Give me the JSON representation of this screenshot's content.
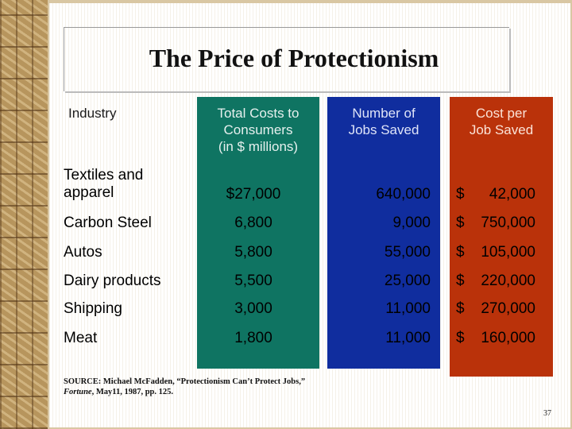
{
  "slide": {
    "title": "The Price of Protectionism",
    "page_number": "37"
  },
  "columns": {
    "industry": "Industry",
    "total_costs": [
      "Total Costs to",
      "Consumers",
      "(in $ millions)"
    ],
    "jobs_saved": [
      "Number of",
      "Jobs Saved"
    ],
    "cost_per_job": [
      "Cost per",
      "Job Saved"
    ]
  },
  "colors": {
    "total_costs_column": "#0f7462",
    "jobs_saved_column": "#102d9e",
    "cost_per_job_column": "#ba320a"
  },
  "rows": [
    {
      "industry": [
        "Textiles and",
        "apparel"
      ],
      "total": "$27,000",
      "jobs": "640,000",
      "cost_symbol": "$",
      "cost": "42,000"
    },
    {
      "industry": [
        "Carbon Steel"
      ],
      "total": "6,800",
      "jobs": "9,000",
      "cost_symbol": "$",
      "cost": "750,000"
    },
    {
      "industry": [
        "Autos"
      ],
      "total": "5,800",
      "jobs": "55,000",
      "cost_symbol": "$",
      "cost": "105,000"
    },
    {
      "industry": [
        "Dairy products"
      ],
      "total": "5,500",
      "jobs": "25,000",
      "cost_symbol": "$",
      "cost": "220,000"
    },
    {
      "industry": [
        "Shipping"
      ],
      "total": "3,000",
      "jobs": "11,000",
      "cost_symbol": "$",
      "cost": "270,000"
    },
    {
      "industry": [
        "Meat"
      ],
      "total": "1,800",
      "jobs": "11,000",
      "cost_symbol": "$",
      "cost": "160,000"
    }
  ],
  "source": {
    "line1": "SOURCE: Michael McFadden, “Protectionism Can’t Protect Jobs,”",
    "journal": "Fortune",
    "line2_rest": ", May11, 1987, pp. 125."
  }
}
